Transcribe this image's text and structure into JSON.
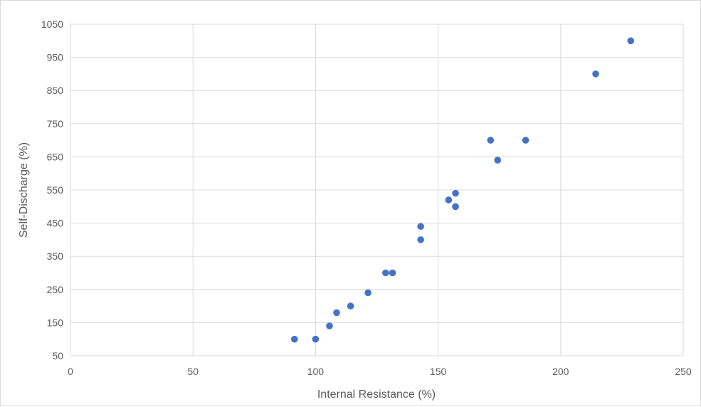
{
  "chart_data": {
    "type": "scatter",
    "title": "",
    "xlabel": "Internal Resistance (%)",
    "ylabel": "Self-Discharge (%)",
    "xlim": [
      0,
      250
    ],
    "ylim": [
      50,
      1050
    ],
    "x_ticks": [
      0,
      50,
      100,
      150,
      200,
      250
    ],
    "y_ticks": [
      50,
      150,
      250,
      350,
      450,
      550,
      650,
      750,
      850,
      950,
      1050
    ],
    "grid": true,
    "legend": "none",
    "marker_color": "#4472C4",
    "gridline_color": "#d9d9d9",
    "series": [
      {
        "x": [
          91.4,
          100,
          105.7,
          108.6,
          114.3,
          121.4,
          128.6,
          131.4,
          142.9,
          142.9,
          154.3,
          157.1,
          157.1,
          171.4,
          174.3,
          185.7,
          214.3,
          228.6
        ],
        "y": [
          100,
          100,
          140,
          180,
          200,
          240,
          300,
          300,
          400,
          440,
          520,
          540,
          500,
          700,
          640,
          700,
          900,
          1000
        ]
      }
    ]
  }
}
